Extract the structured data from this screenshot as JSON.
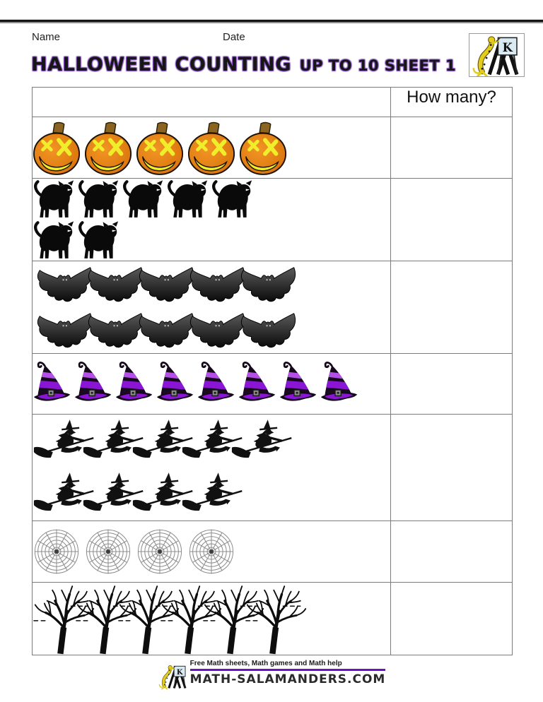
{
  "page": {
    "name_label": "Name",
    "date_label": "Date"
  },
  "title": {
    "main": "HALLOWEEN COUNTING",
    "sub": "UP TO 10 SHEET 1"
  },
  "logo": {
    "letter": "K"
  },
  "table": {
    "how_many_header": "How many?",
    "answers_blank": true,
    "rows": [
      {
        "item": "pumpkin",
        "label": "jack-o-lantern pumpkins",
        "count": 5,
        "lines": [
          5
        ]
      },
      {
        "item": "black-cat",
        "label": "black cats",
        "count": 7,
        "lines": [
          5,
          2
        ]
      },
      {
        "item": "bat",
        "label": "bats",
        "count": 10,
        "lines": [
          5,
          5
        ]
      },
      {
        "item": "witch-hat",
        "label": "witch hats",
        "count": 8,
        "lines": [
          8
        ]
      },
      {
        "item": "witch-on-broom",
        "label": "witches on broomsticks",
        "count": 9,
        "lines": [
          5,
          4
        ]
      },
      {
        "item": "spider-web",
        "label": "spider webs",
        "count": 4,
        "lines": [
          4
        ]
      },
      {
        "item": "tree",
        "label": "bare trees",
        "count": 6,
        "lines": [
          6
        ]
      }
    ]
  },
  "footer": {
    "tagline": "Free Math sheets, Math games and Math help",
    "site": "MATH-SALAMANDERS.COM"
  },
  "colors": {
    "title-glow": "#8f5cc8",
    "pumpkin-orange": "#e8820f",
    "pumpkin-stem": "#8a6420",
    "pumpkin-face": "#f0ee2a",
    "hat-purple": "#8a15d4",
    "hat-purple-light": "#b44fe8",
    "bat-dark": "#141414",
    "web-gray": "#8c8c8c",
    "salamander-yellow": "#e3cd1c",
    "footer-rule-purple": "#6a10c8",
    "table-border": "#7b7b7b"
  }
}
